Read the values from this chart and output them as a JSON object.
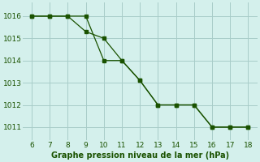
{
  "xlabel": "Graphe pression niveau de la mer (hPa)",
  "xlim": [
    5.5,
    18.5
  ],
  "ylim": [
    1010.4,
    1016.6
  ],
  "xticks": [
    6,
    7,
    8,
    9,
    10,
    11,
    12,
    13,
    14,
    15,
    16,
    17,
    18
  ],
  "yticks": [
    1011,
    1012,
    1013,
    1014,
    1015,
    1016
  ],
  "series1_x": [
    6,
    7,
    8,
    9,
    10,
    11,
    12,
    13,
    14,
    15,
    16,
    17,
    18
  ],
  "series1_y": [
    1016.0,
    1016.0,
    1016.0,
    1015.3,
    1015.0,
    1014.0,
    1013.1,
    1012.0,
    1012.0,
    1012.0,
    1011.0,
    1011.0,
    1011.0
  ],
  "series2_x": [
    6,
    7,
    8,
    9,
    10,
    11,
    12,
    13,
    14,
    15,
    16,
    17,
    18
  ],
  "series2_y": [
    1016.0,
    1016.0,
    1016.0,
    1016.0,
    1014.0,
    1014.0,
    1013.1,
    1012.0,
    1012.0,
    1012.0,
    1011.0,
    1011.0,
    1011.0
  ],
  "line_color": "#1a5200",
  "bg_color": "#d4f0ec",
  "grid_color": "#a8ccc8",
  "tick_color": "#1a5200",
  "label_color": "#1a5200",
  "label_fontsize": 7.0,
  "tick_fontsize": 6.5
}
